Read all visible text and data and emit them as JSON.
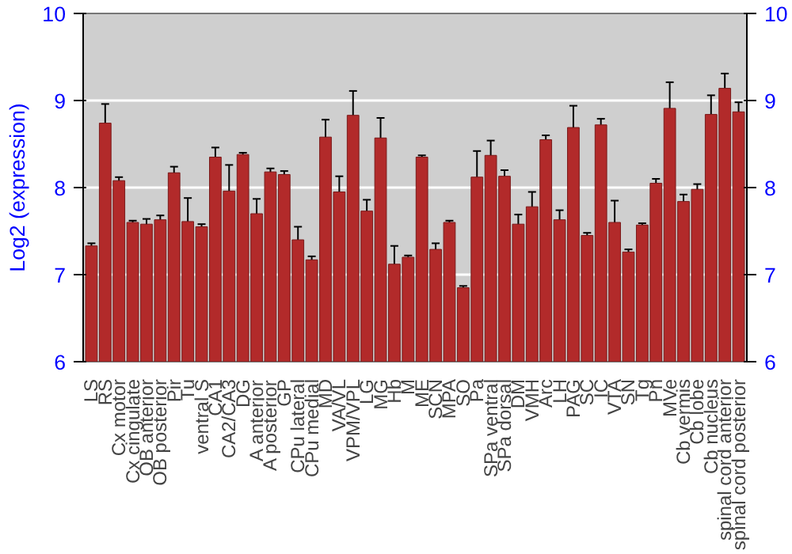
{
  "chart_data": {
    "type": "bar",
    "ylabel": "Log2 (expression)",
    "categories": [
      "LS",
      "RS",
      "Cx motor",
      "Cx cingulate",
      "OB anterior",
      "OB posterior",
      "Pir",
      "Tu",
      "ventral S",
      "CA1",
      "CA2/CA3",
      "DG",
      "A anterior",
      "A posterior",
      "GP",
      "CPu lateral",
      "CPu medial",
      "MD",
      "VA/VL",
      "VPM/VPL",
      "LG",
      "MG",
      "Hb",
      "M",
      "ME",
      "SCN",
      "MPA",
      "SO",
      "Pa",
      "SPa ventral",
      "SPa dorsal",
      "DM",
      "VMH",
      "Arc",
      "LH",
      "PAG",
      "SC",
      "IC",
      "VTA",
      "SN",
      "Tg",
      "Pn",
      "MVe",
      "Cb vermis",
      "Cb lobe",
      "Cb nucleus",
      "spinal cord anterior",
      "spinal cord posterior"
    ],
    "values": [
      7.33,
      8.74,
      8.08,
      7.6,
      7.58,
      7.63,
      8.17,
      7.61,
      7.55,
      8.35,
      7.96,
      8.38,
      7.7,
      8.18,
      8.15,
      7.4,
      7.17,
      8.58,
      7.95,
      8.83,
      7.73,
      8.57,
      7.12,
      7.2,
      8.35,
      7.29,
      7.6,
      6.85,
      8.12,
      8.37,
      8.13,
      7.58,
      7.78,
      8.55,
      7.63,
      8.69,
      7.45,
      8.72,
      7.6,
      7.26,
      7.57,
      8.05,
      8.91,
      7.84,
      7.98,
      8.84,
      9.14,
      8.87
    ],
    "errors": [
      0.03,
      0.22,
      0.04,
      0.02,
      0.06,
      0.05,
      0.07,
      0.27,
      0.03,
      0.11,
      0.3,
      0.02,
      0.17,
      0.04,
      0.04,
      0.15,
      0.04,
      0.2,
      0.18,
      0.28,
      0.13,
      0.23,
      0.21,
      0.02,
      0.02,
      0.07,
      0.02,
      0.02,
      0.3,
      0.17,
      0.07,
      0.11,
      0.17,
      0.05,
      0.11,
      0.25,
      0.03,
      0.07,
      0.25,
      0.03,
      0.02,
      0.05,
      0.3,
      0.08,
      0.06,
      0.22,
      0.17,
      0.11
    ],
    "color": "#b22a2a",
    "ylim": [
      6,
      10
    ],
    "yticks": [
      6,
      7,
      8,
      9,
      10
    ],
    "y2lim": [
      6,
      10
    ],
    "y2ticks": [
      6,
      7,
      8,
      9,
      10
    ],
    "grid": "y"
  }
}
